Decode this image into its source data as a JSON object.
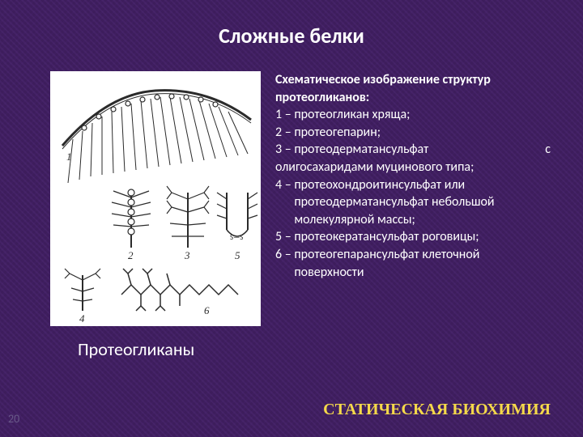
{
  "title": "Сложные белки",
  "figure": {
    "background": "#ffffff",
    "stroke": "#2b2b2b",
    "labels": [
      "1",
      "2",
      "3",
      "4",
      "5",
      "6"
    ]
  },
  "text": {
    "heading_line1": "Схематическое изображение структур",
    "heading_line2": "протеогликанов:",
    "items": [
      {
        "label": "1 – ",
        "body": "протеогликан хряща;"
      },
      {
        "label": "2 – ",
        "body": "протеогепарин;"
      },
      {
        "label": "3 – ",
        "body": "протеодерматансульфат",
        "tail": "с",
        "cont": "олигосахаридами муцинового типа;"
      },
      {
        "label": "4 – ",
        "body": "протеохондроитинсульфат или протеодерматансульфат небольшой молекулярной массы;"
      },
      {
        "label": "5 – ",
        "body": "протеокератансульфат роговицы;"
      },
      {
        "label": "6 – ",
        "body": " протеогепарансульфат клеточной поверхности"
      }
    ]
  },
  "caption": "Протеогликаны",
  "page_number": "20",
  "footer": "СТАТИЧЕСКАЯ БИОХИМИЯ",
  "colors": {
    "bg": "#3d1d5c",
    "title": "#ffffff",
    "body": "#ffffff",
    "footer": "#f5d94a",
    "pagenum": "#6a5a8a"
  }
}
